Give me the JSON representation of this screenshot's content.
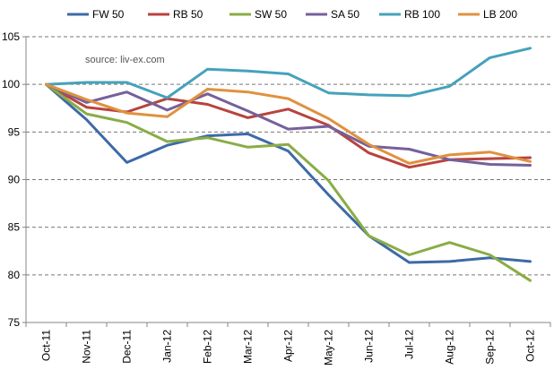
{
  "chart_data": {
    "type": "line",
    "title": "",
    "xlabel": "",
    "ylabel": "",
    "annotation": "source: liv-ex.com",
    "categories": [
      "Oct-11",
      "Nov-11",
      "Dec-11",
      "Jan-12",
      "Feb-12",
      "Mar-12",
      "Apr-12",
      "May-12",
      "Jun-12",
      "Jul-12",
      "Aug-12",
      "Sep-12",
      "Oct-12"
    ],
    "ylim": [
      75,
      105
    ],
    "yticks": [
      75,
      80,
      85,
      90,
      95,
      100,
      105
    ],
    "grid": "horizontal dashed",
    "legend_position": "top",
    "series": [
      {
        "name": "FW 50",
        "color": "#3d6aa6",
        "values": [
          100,
          96.3,
          91.8,
          93.6,
          94.6,
          94.8,
          93.0,
          88.4,
          84.1,
          81.3,
          81.4,
          81.8,
          81.4
        ]
      },
      {
        "name": "RB 50",
        "color": "#b8433e",
        "values": [
          100,
          97.6,
          97.1,
          98.5,
          97.9,
          96.5,
          97.4,
          95.7,
          92.8,
          91.3,
          92.1,
          92.2,
          92.3
        ]
      },
      {
        "name": "SW 50",
        "color": "#8aac45",
        "values": [
          100,
          96.9,
          96.0,
          94.0,
          94.4,
          93.4,
          93.7,
          89.9,
          84.1,
          82.1,
          83.4,
          82.1,
          79.4
        ]
      },
      {
        "name": "SA 50",
        "color": "#76609b",
        "values": [
          100,
          98.1,
          99.2,
          97.3,
          99.0,
          97.2,
          95.3,
          95.6,
          93.5,
          93.2,
          92.1,
          91.6,
          91.5
        ]
      },
      {
        "name": "RB 100",
        "color": "#45a2bb",
        "values": [
          100,
          100.2,
          100.2,
          98.6,
          101.6,
          101.4,
          101.1,
          99.1,
          98.9,
          98.8,
          99.8,
          102.8,
          103.8
        ]
      },
      {
        "name": "LB 200",
        "color": "#e0913f",
        "values": [
          100,
          98.4,
          97.0,
          96.6,
          99.5,
          99.2,
          98.5,
          96.4,
          93.7,
          91.7,
          92.6,
          92.9,
          91.9
        ]
      }
    ]
  }
}
